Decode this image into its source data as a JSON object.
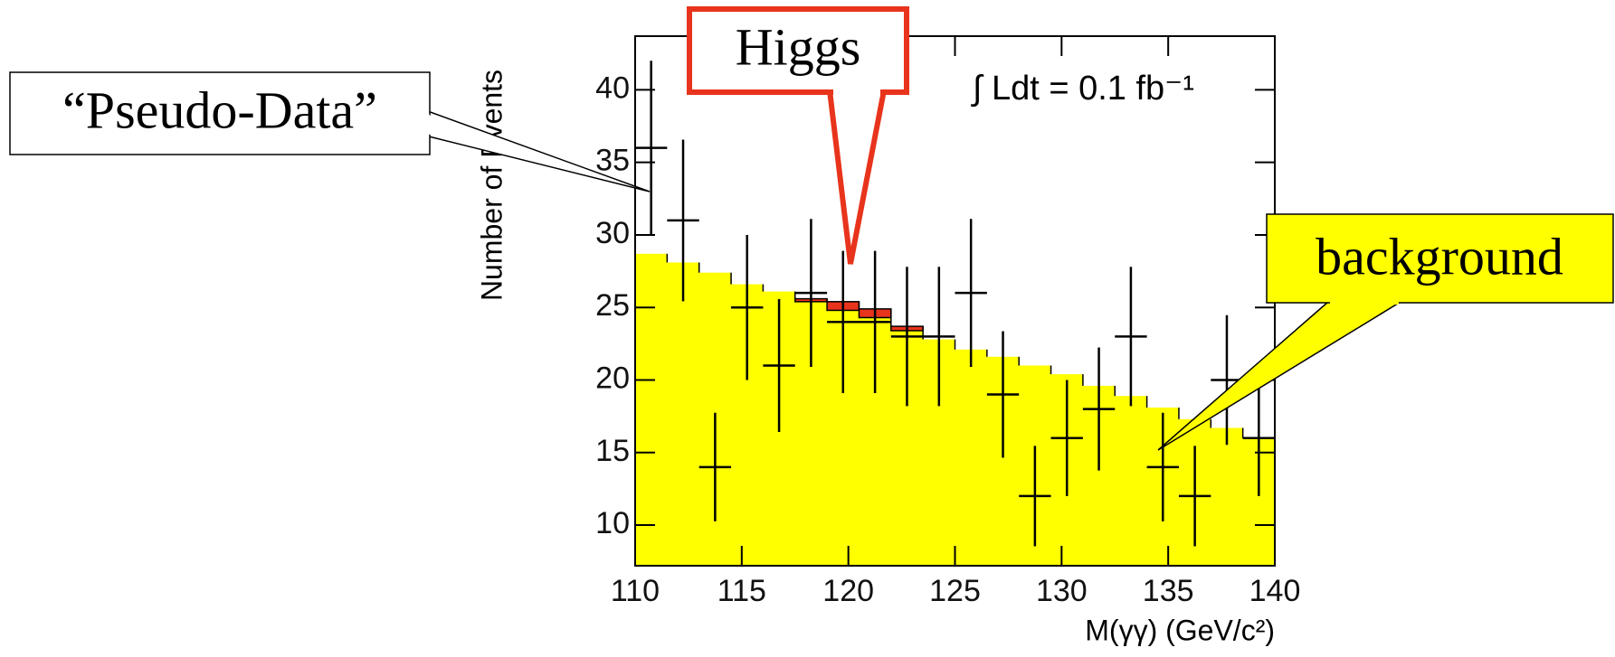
{
  "chart_data": {
    "type": "histogram",
    "x_label": "M(γγ) (GeV/c²)",
    "y_label": "Number of Events",
    "annotation": "∫ Ldt = 0.1 fb⁻¹",
    "bins": [
      110,
      111.5,
      113,
      114.5,
      116,
      117.5,
      119,
      120.5,
      122,
      123.5,
      125,
      126.5,
      128,
      129.5,
      131,
      132.5,
      134,
      135.5,
      137,
      138.5,
      140
    ],
    "series": [
      {
        "name": "background",
        "color": "#ffff00",
        "values": [
          28.7,
          28.1,
          27.4,
          26.6,
          26.1,
          25.4,
          24.8,
          24.3,
          23.4,
          22.8,
          22.1,
          21.6,
          21.0,
          20.4,
          19.6,
          18.9,
          18.1,
          17.3,
          16.7,
          16.0
        ]
      },
      {
        "name": "Higgs",
        "color": "#e8341c",
        "values": [
          0,
          0,
          0,
          0,
          0,
          0.2,
          0.6,
          0.6,
          0.3,
          0,
          0,
          0,
          0,
          0,
          0,
          0,
          0,
          0,
          0,
          0
        ]
      }
    ],
    "points": {
      "name": "“Pseudo-Data”",
      "color": "#000000",
      "values": [
        36,
        31,
        14,
        25,
        21,
        26,
        24,
        24,
        23,
        23,
        26,
        19,
        12,
        16,
        18,
        23,
        14,
        12,
        20,
        16
      ],
      "errors": [
        6,
        5.57,
        3.74,
        5,
        4.58,
        5.1,
        4.9,
        4.9,
        4.8,
        4.8,
        5.1,
        4.36,
        3.46,
        4,
        4.24,
        4.8,
        3.74,
        3.46,
        4.47,
        4
      ]
    },
    "xlim": [
      110,
      140
    ],
    "ylim": [
      7.2,
      43.7
    ],
    "xticks": [
      110,
      115,
      120,
      125,
      130,
      135,
      140
    ],
    "yticks": [
      10,
      15,
      20,
      25,
      30,
      35,
      40
    ]
  }
}
